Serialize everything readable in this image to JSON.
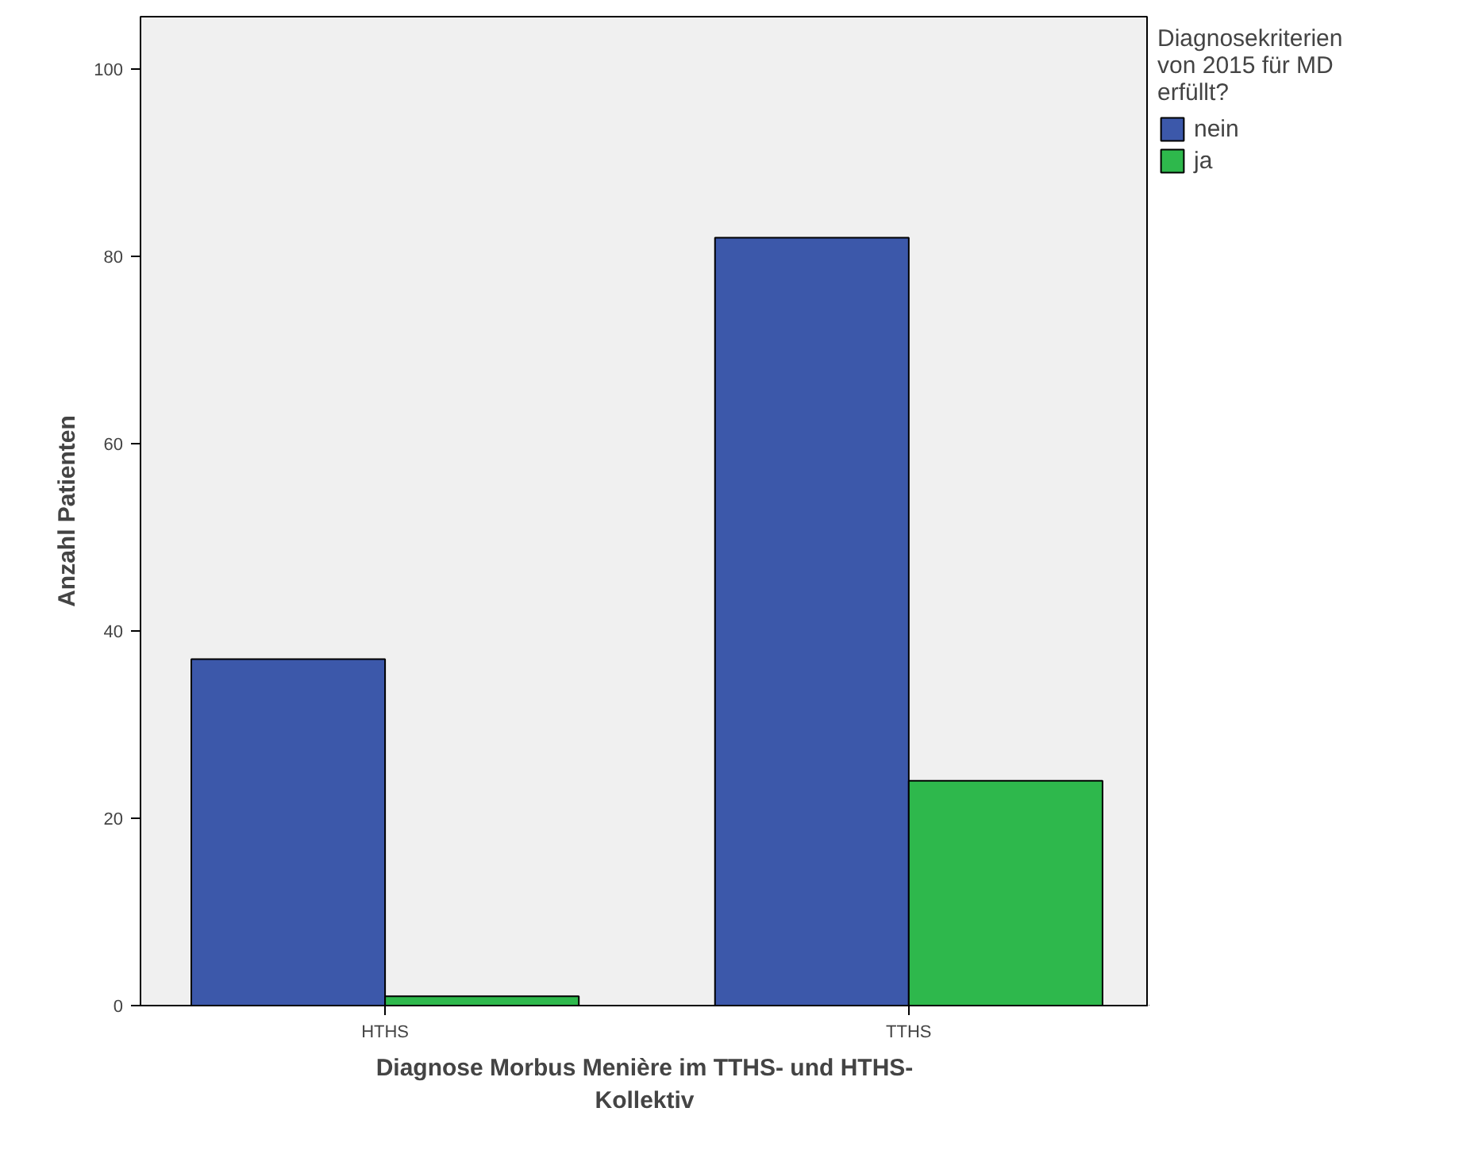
{
  "chart_data": {
    "type": "bar",
    "xlabel": "Diagnose Morbus Menière im TTHS- und HTHS-Kollektiv",
    "ylabel": "Anzahl Patienten",
    "legend_title": "Diagnosekriterien von 2015 für MD erfüllt?",
    "categories": [
      "HTHS",
      "TTHS"
    ],
    "series": [
      {
        "name": "nein",
        "color": "#3c58aa",
        "values": [
          37,
          82
        ]
      },
      {
        "name": "ja",
        "color": "#2eb84c",
        "values": [
          1,
          24
        ]
      }
    ],
    "ylim": [
      0,
      105.6
    ],
    "yticks": [
      0,
      20,
      40,
      60,
      80,
      100
    ],
    "grid": false,
    "legend": "top right"
  }
}
